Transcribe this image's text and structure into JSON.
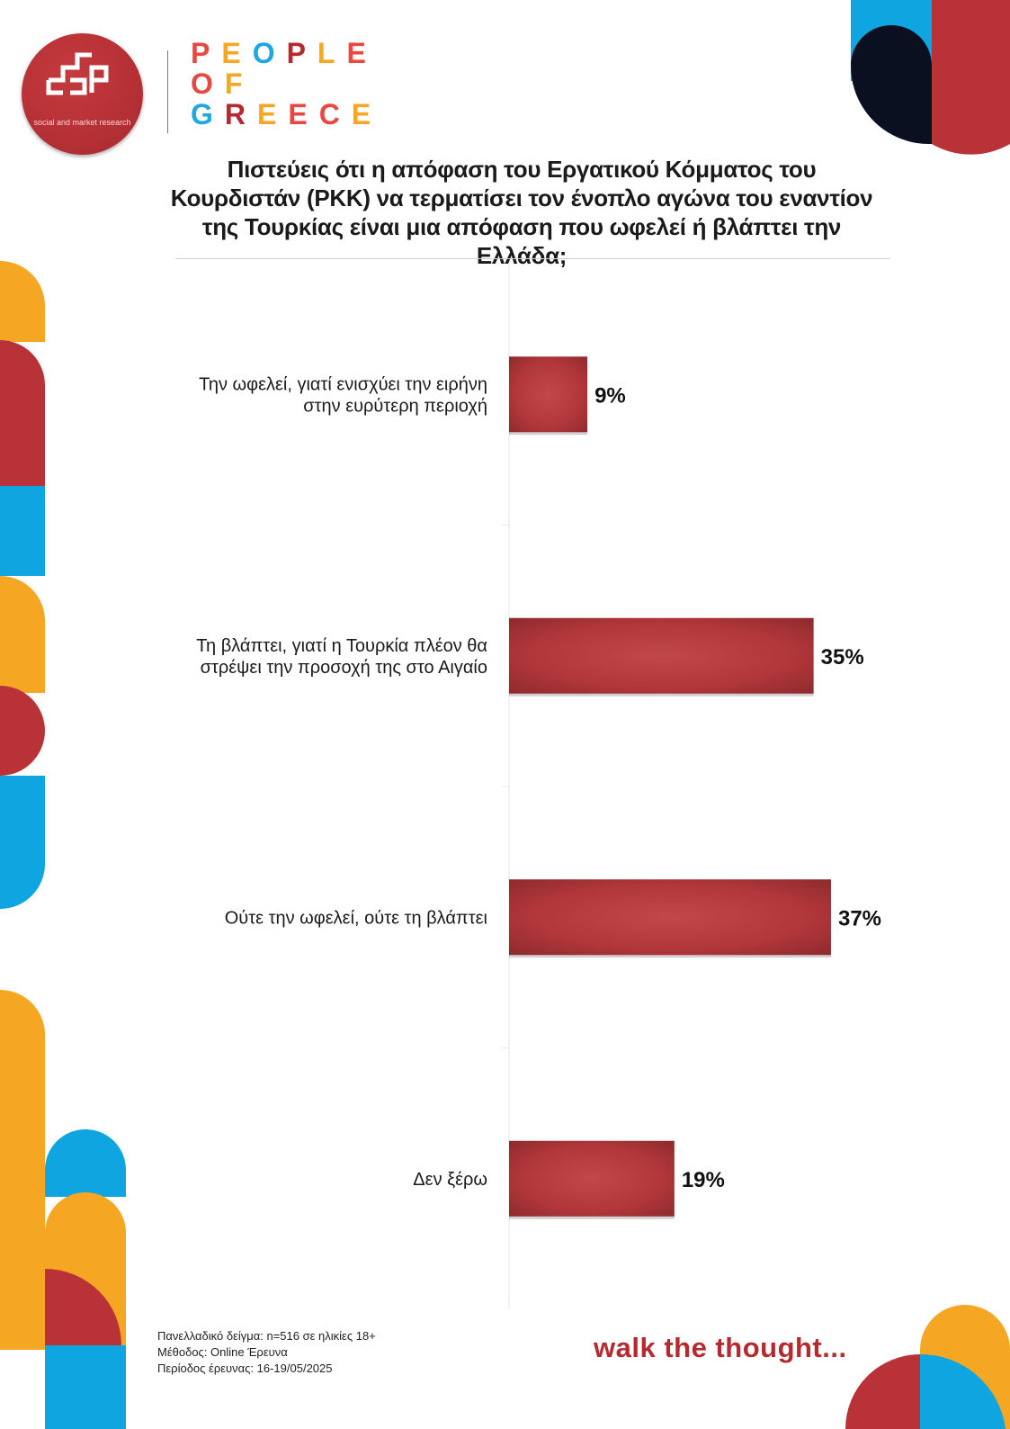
{
  "brand": {
    "logo_tagline": "social and market research",
    "name_lines": [
      "PEOPLE",
      "OF",
      "GREECE"
    ],
    "letter_colors": [
      "#e8483f",
      "#f5a623",
      "#1fa7e0",
      "#b5292f",
      "#f5a623",
      "#e8483f"
    ]
  },
  "title": "Πιστεύεις ότι η απόφαση του Εργατικού Κόμματος του Κουρδιστάν (PKK) να τερματίσει τον ένοπλο αγώνα του εναντίον της Τουρκίας είναι μια απόφαση που ωφελεί ή βλάπτει την Ελλάδα;",
  "chart_data": {
    "type": "bar",
    "orientation": "horizontal",
    "title": "Πιστεύεις ότι η απόφαση του Εργατικού Κόμματος του Κουρδιστάν (PKK) να τερματίσει τον ένοπλο αγώνα του εναντίον της Τουρκίας είναι μια απόφαση που ωφελεί ή βλάπτει την Ελλάδα;",
    "categories": [
      [
        "Την ωφελεί, γιατί ενισχύει την ειρήνη",
        "στην ευρύτερη περιοχή"
      ],
      [
        "Τη βλάπτει, γιατί η Τουρκία πλέον θα",
        "στρέψει την προσοχή της στο Αιγαίο"
      ],
      [
        "Ούτε την ωφελεί, ούτε τη βλάπτει"
      ],
      [
        "Δεν ξέρω"
      ]
    ],
    "values": [
      9,
      35,
      37,
      19
    ],
    "value_labels": [
      "9%",
      "35%",
      "37%",
      "19%"
    ],
    "unit": "%",
    "bar_color": "#b2373b",
    "xlim": [
      0,
      40
    ],
    "grid": false,
    "legend": "none"
  },
  "footer": {
    "sample": "Πανελλαδικό δείγμα: n=516 σε ηλικίες 18+",
    "method": "Μέθοδος: Online Έρευνα",
    "period": "Περίοδος έρευνας: 16-19/05/2025"
  },
  "tagline": "walk the thought...",
  "colors": {
    "red": "#b5292f",
    "orange": "#f5a623",
    "blue": "#0ea5e0",
    "navy": "#0b1020"
  }
}
